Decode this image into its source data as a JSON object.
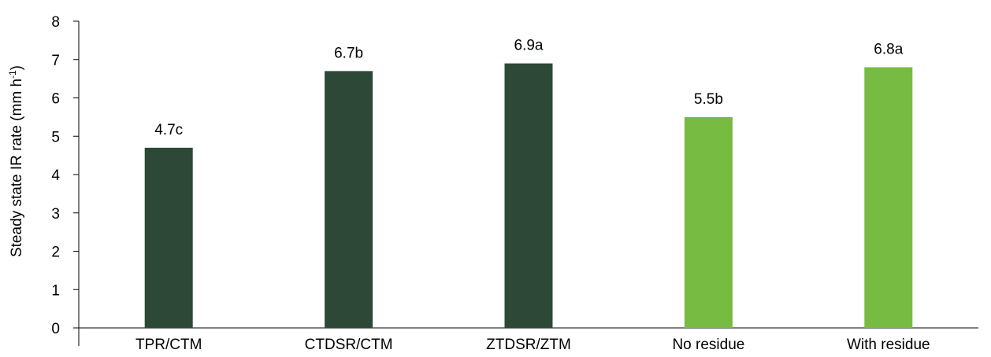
{
  "chart_data": {
    "type": "bar",
    "title": "",
    "xlabel": "",
    "ylabel": "Steady state IR rate (mm h",
    "ylabel_superscript": "-1",
    "ylabel_suffix": ")",
    "ylim": [
      0,
      8
    ],
    "yticks": [
      "0",
      "1",
      "2",
      "3",
      "4",
      "5",
      "6",
      "7",
      "8"
    ],
    "grid": false,
    "categories": [
      "TPR/CTM",
      "CTDSR/CTM",
      "ZTDSR/ZTM",
      "No residue",
      "With residue"
    ],
    "values": [
      4.7,
      6.7,
      6.9,
      5.5,
      6.8
    ],
    "data_labels": [
      "4.7c",
      "6.7b",
      "6.9a",
      "5.5b",
      "6.8a"
    ],
    "bar_colors": [
      "#2d4837",
      "#2d4837",
      "#2d4837",
      "#78bb42",
      "#78bb42"
    ]
  }
}
